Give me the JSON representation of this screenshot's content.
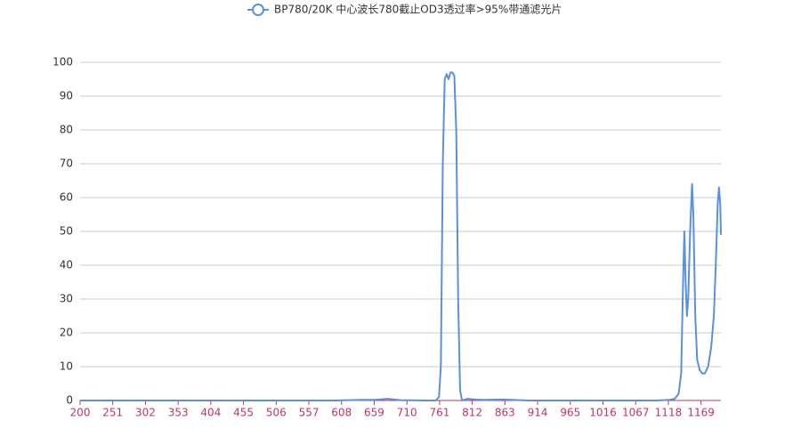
{
  "chart_data": {
    "type": "line",
    "series": [
      {
        "name": "BP780/20K 中心波长780截止OD3透过率>95%带通滤光片",
        "color": "#5b8fe0",
        "x": [
          200,
          250,
          300,
          350,
          400,
          450,
          500,
          550,
          600,
          640,
          660,
          680,
          700,
          740,
          755,
          760,
          763,
          766,
          769,
          772,
          775,
          778,
          781,
          784,
          787,
          790,
          793,
          796,
          805,
          815,
          830,
          860,
          900,
          950,
          1000,
          1050,
          1100,
          1120,
          1128,
          1134,
          1138,
          1141,
          1143,
          1145,
          1147,
          1149,
          1152,
          1155,
          1157,
          1160,
          1163,
          1167,
          1171,
          1175,
          1180,
          1185,
          1189,
          1192,
          1195,
          1197,
          1199,
          1200
        ],
        "values": [
          0,
          0,
          0,
          0,
          0,
          0,
          0,
          0,
          0,
          0.2,
          0.2,
          0.5,
          0.1,
          0,
          0,
          1,
          10,
          70,
          95,
          96.5,
          95,
          97,
          97,
          96,
          80,
          30,
          3,
          0,
          0.5,
          0.3,
          0.2,
          0.3,
          0,
          0,
          0,
          0,
          0,
          0.2,
          0.5,
          2,
          8,
          35,
          50,
          35,
          25,
          30,
          50,
          64,
          55,
          25,
          12,
          9,
          8,
          8,
          10,
          16,
          25,
          40,
          58,
          63,
          58,
          49
        ]
      }
    ],
    "xlim": [
      200,
      1200
    ],
    "xticks": [
      200,
      251,
      302,
      353,
      404,
      455,
      506,
      557,
      608,
      659,
      710,
      761,
      812,
      863,
      914,
      965,
      1016,
      1067,
      1118,
      1169
    ],
    "ylim": [
      0,
      100
    ],
    "yticks": [
      0,
      10,
      20,
      30,
      40,
      50,
      60,
      70,
      80,
      90,
      100
    ],
    "grid": true,
    "axis_color": "#c23560"
  }
}
